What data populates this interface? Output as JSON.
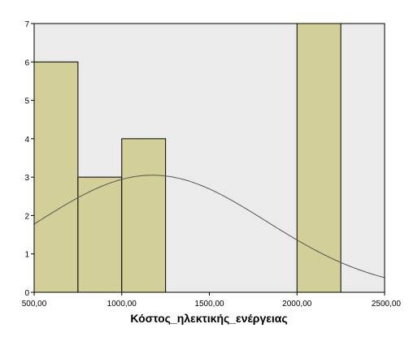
{
  "chart_data": {
    "type": "bar",
    "subtype": "histogram",
    "xlabel": "Κόστος_ηλεκτικής_ενέργειας",
    "ylabel": "",
    "xlim": [
      500,
      2500
    ],
    "ylim": [
      0,
      7
    ],
    "x_ticks": [
      500,
      1000,
      1500,
      2000,
      2500
    ],
    "x_tick_labels": [
      "500,00",
      "1000,00",
      "1500,00",
      "2000,00",
      "2500,00"
    ],
    "y_ticks": [
      0,
      1,
      2,
      3,
      4,
      5,
      6,
      7
    ],
    "y_tick_labels": [
      "0",
      "1",
      "2",
      "3",
      "4",
      "5",
      "6",
      "7"
    ],
    "bins": [
      {
        "x0": 500,
        "x1": 750,
        "count": 6
      },
      {
        "x0": 750,
        "x1": 1000,
        "count": 3
      },
      {
        "x0": 1000,
        "x1": 1250,
        "count": 4
      },
      {
        "x0": 2000,
        "x1": 2250,
        "count": 7
      }
    ],
    "normal_curve": {
      "mean": 1175,
      "sd": 650,
      "peak": 3.05
    },
    "grid": false,
    "colors": {
      "plot_background": "#ebebeb",
      "bar_fill": "#d3cf98",
      "bar_stroke": "#000000",
      "curve": "#555555",
      "axis": "#000000"
    }
  }
}
